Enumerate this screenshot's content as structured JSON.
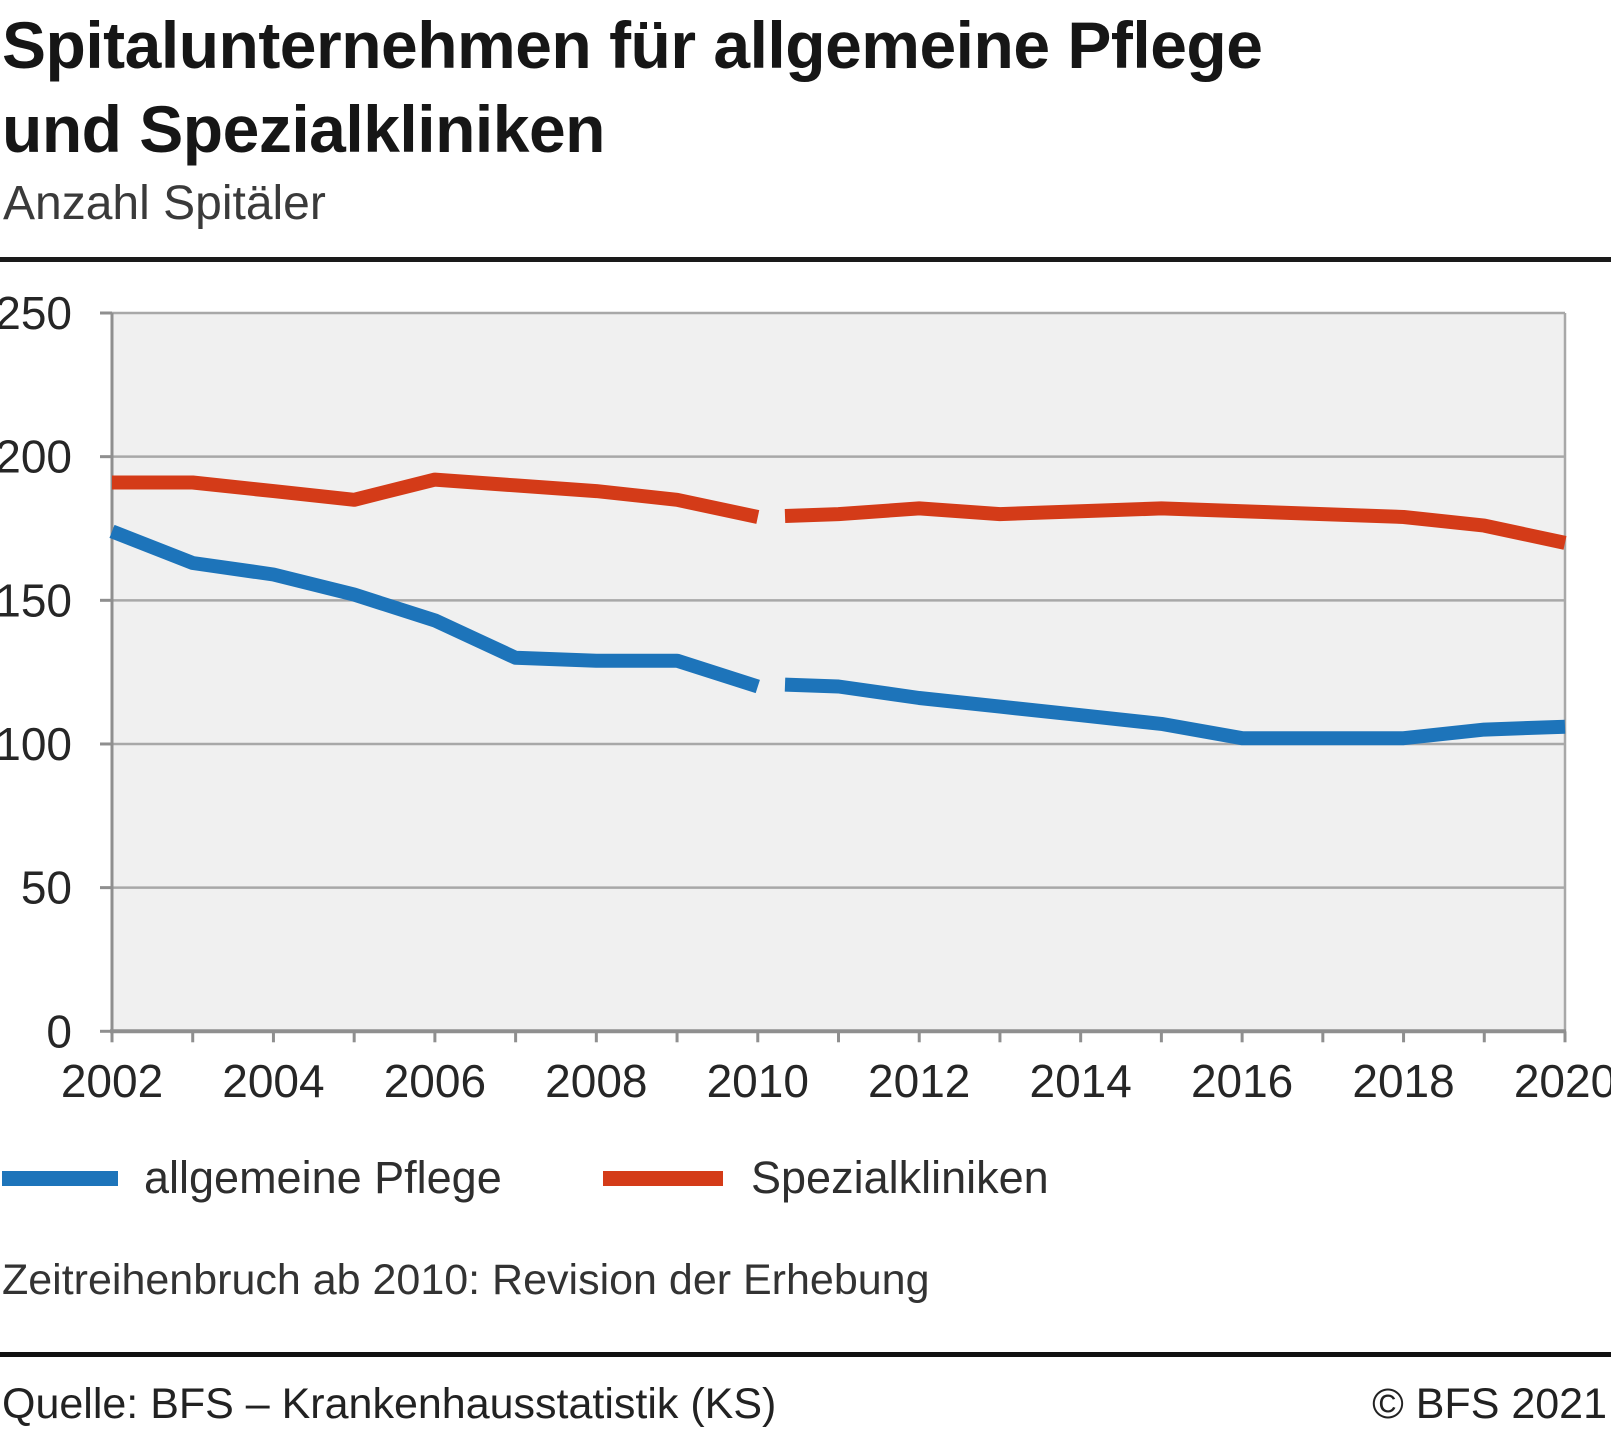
{
  "header": {
    "title_line1": "Spitalunternehmen für allgemeine Pflege",
    "title_line2": "und Spezialkliniken",
    "subtitle": "Anzahl Spitäler"
  },
  "chart_data": {
    "type": "line",
    "title": "Spitalunternehmen für allgemeine Pflege und Spezialkliniken",
    "ylabel": "Anzahl Spitäler",
    "xlabel": "",
    "ylim": [
      0,
      250
    ],
    "yticks": [
      0,
      50,
      100,
      150,
      200,
      250
    ],
    "x_range": [
      2002,
      2020
    ],
    "xticks_labeled": [
      2002,
      2004,
      2006,
      2008,
      2010,
      2012,
      2014,
      2016,
      2018,
      2020
    ],
    "grid": "horizontal",
    "legend_position": "bottom",
    "break_year": 2010,
    "break_note": "Zeitreihenbruch ab 2010: Revision der Erhebung",
    "colors": {
      "plot_bg": "#f0f0f0",
      "grid": "#a8a8a8",
      "axis": "#8f8f8f",
      "tick_label": "#262626"
    },
    "series": [
      {
        "id": "allgemeine-pflege",
        "name": "allgemeine Pflege",
        "color": "#1d74ba",
        "segments": [
          {
            "years": [
              2002,
              2003,
              2004,
              2005,
              2006,
              2007,
              2008,
              2009,
              2010
            ],
            "values": [
              174,
              163,
              159,
              152,
              143,
              130,
              129,
              129,
              120
            ]
          },
          {
            "years": [
              2010,
              2011,
              2012,
              2013,
              2014,
              2015,
              2016,
              2017,
              2018,
              2019,
              2020
            ],
            "values": [
              121,
              120,
              116,
              113,
              110,
              107,
              102,
              102,
              102,
              105,
              106
            ]
          }
        ]
      },
      {
        "id": "spezialkliniken",
        "name": "Spezialkliniken",
        "color": "#d43b18",
        "segments": [
          {
            "years": [
              2002,
              2003,
              2004,
              2005,
              2006,
              2007,
              2008,
              2009,
              2010
            ],
            "values": [
              191,
              191,
              188,
              185,
              192,
              190,
              188,
              185,
              179
            ]
          },
          {
            "years": [
              2010,
              2011,
              2012,
              2013,
              2014,
              2015,
              2016,
              2017,
              2018,
              2019,
              2020
            ],
            "values": [
              179,
              180,
              182,
              180,
              181,
              182,
              181,
              180,
              179,
              176,
              170
            ]
          }
        ]
      }
    ]
  },
  "legend": {
    "items": [
      {
        "label": "allgemeine Pflege",
        "color": "#1d74ba"
      },
      {
        "label": "Spezialkliniken",
        "color": "#d43b18"
      }
    ]
  },
  "notes": {
    "break_note": "Zeitreihenbruch ab 2010: Revision der Erhebung"
  },
  "footer": {
    "source": "Quelle: BFS – Krankenhausstatistik (KS)",
    "copyright": "© BFS 2021"
  }
}
